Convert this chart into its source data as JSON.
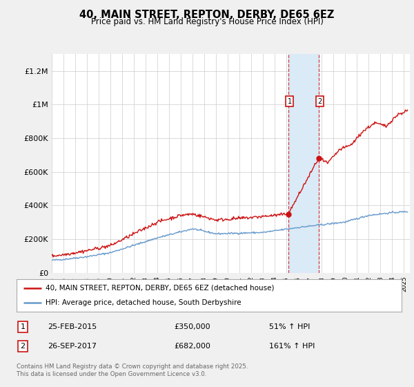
{
  "title": "40, MAIN STREET, REPTON, DERBY, DE65 6EZ",
  "subtitle": "Price paid vs. HM Land Registry's House Price Index (HPI)",
  "ylabel_ticks": [
    "£0",
    "£200K",
    "£400K",
    "£600K",
    "£800K",
    "£1M",
    "£1.2M"
  ],
  "ytick_values": [
    0,
    200000,
    400000,
    600000,
    800000,
    1000000,
    1200000
  ],
  "ylim": [
    0,
    1300000
  ],
  "xlim_start": 1995.0,
  "xlim_end": 2025.5,
  "marker1_x": 2015.15,
  "marker1_y": 350000,
  "marker2_x": 2017.73,
  "marker2_y": 682000,
  "shade_x1": 2015.15,
  "shade_x2": 2017.73,
  "legend_line1": "40, MAIN STREET, REPTON, DERBY, DE65 6EZ (detached house)",
  "legend_line2": "HPI: Average price, detached house, South Derbyshire",
  "annotation1_label": "1",
  "annotation1_date": "25-FEB-2015",
  "annotation1_price": "£350,000",
  "annotation1_hpi": "51% ↑ HPI",
  "annotation2_label": "2",
  "annotation2_date": "26-SEP-2017",
  "annotation2_price": "£682,000",
  "annotation2_hpi": "161% ↑ HPI",
  "footer": "Contains HM Land Registry data © Crown copyright and database right 2025.\nThis data is licensed under the Open Government Licence v3.0.",
  "line_color_red": "#cc1111",
  "line_color_blue": "#6699cc",
  "shade_color": "#daeaf7",
  "background_color": "#f0f0f0",
  "plot_bg_color": "#ffffff"
}
